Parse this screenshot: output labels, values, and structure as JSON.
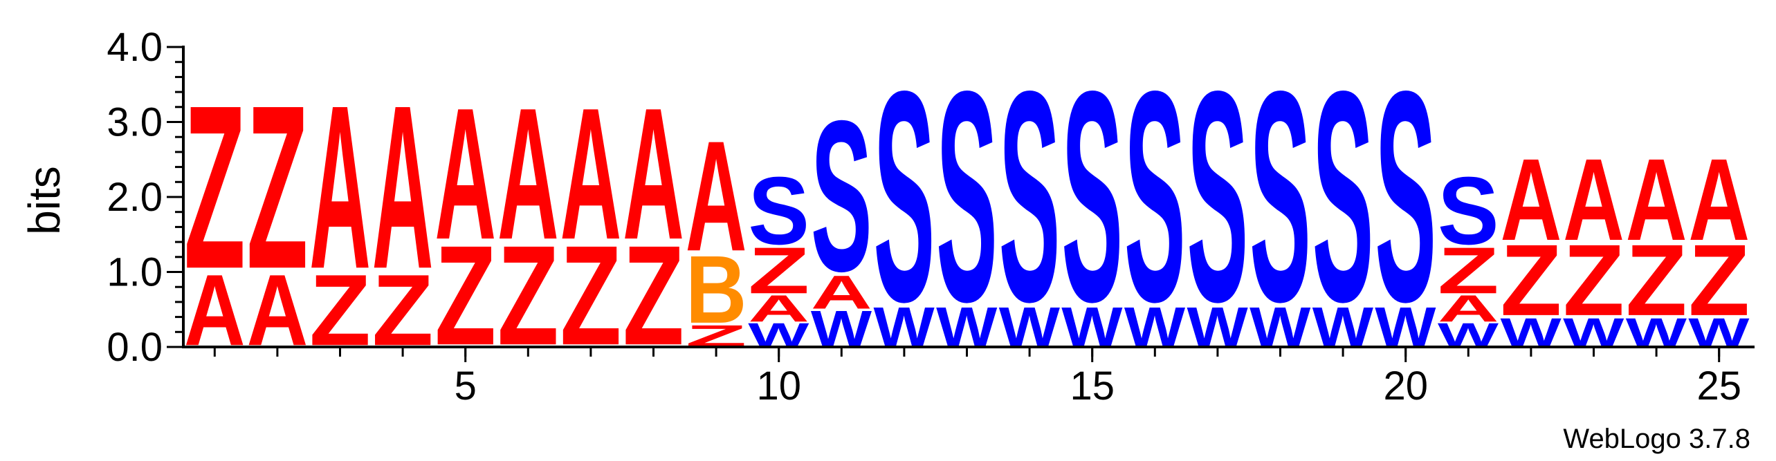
{
  "chart_data": {
    "type": "sequence-logo",
    "ylabel": "bits",
    "ylim": [
      0,
      4.0
    ],
    "yticks": [
      "0.0",
      "1.0",
      "2.0",
      "3.0",
      "4.0"
    ],
    "xlim": [
      0.5,
      25.5
    ],
    "xticks": [
      5,
      10,
      15,
      20,
      25
    ],
    "footer": "WebLogo 3.7.8",
    "colors": {
      "Z": "#ff0000",
      "A": "#ff0000",
      "S": "#0000ff",
      "W": "#0000ff",
      "B": "#ff8c00"
    },
    "positions": [
      {
        "pos": 1,
        "stack": [
          {
            "letter": "A",
            "bits": 1.0
          },
          {
            "letter": "Z",
            "bits": 2.3
          }
        ]
      },
      {
        "pos": 2,
        "stack": [
          {
            "letter": "A",
            "bits": 1.0
          },
          {
            "letter": "Z",
            "bits": 2.3
          }
        ]
      },
      {
        "pos": 3,
        "stack": [
          {
            "letter": "Z",
            "bits": 1.0
          },
          {
            "letter": "A",
            "bits": 2.3
          }
        ]
      },
      {
        "pos": 4,
        "stack": [
          {
            "letter": "Z",
            "bits": 1.0
          },
          {
            "letter": "A",
            "bits": 2.3
          }
        ]
      },
      {
        "pos": 5,
        "stack": [
          {
            "letter": "Z",
            "bits": 1.4
          },
          {
            "letter": "A",
            "bits": 1.85
          }
        ]
      },
      {
        "pos": 6,
        "stack": [
          {
            "letter": "Z",
            "bits": 1.4
          },
          {
            "letter": "A",
            "bits": 1.85
          }
        ]
      },
      {
        "pos": 7,
        "stack": [
          {
            "letter": "Z",
            "bits": 1.4
          },
          {
            "letter": "A",
            "bits": 1.85
          }
        ]
      },
      {
        "pos": 8,
        "stack": [
          {
            "letter": "Z",
            "bits": 1.4
          },
          {
            "letter": "A",
            "bits": 1.85
          }
        ]
      },
      {
        "pos": 9,
        "stack": [
          {
            "letter": "Z",
            "bits": 0.3
          },
          {
            "letter": "B",
            "bits": 0.95
          },
          {
            "letter": "A",
            "bits": 1.55
          }
        ]
      },
      {
        "pos": 10,
        "stack": [
          {
            "letter": "W",
            "bits": 0.33
          },
          {
            "letter": "A",
            "bits": 0.37
          },
          {
            "letter": "Z",
            "bits": 0.65
          },
          {
            "letter": "S",
            "bits": 0.95
          }
        ]
      },
      {
        "pos": 11,
        "stack": [
          {
            "letter": "W",
            "bits": 0.5
          },
          {
            "letter": "A",
            "bits": 0.47
          },
          {
            "letter": "S",
            "bits": 2.12
          }
        ]
      },
      {
        "pos": 12,
        "stack": [
          {
            "letter": "W",
            "bits": 0.55
          },
          {
            "letter": "S",
            "bits": 2.96
          }
        ]
      },
      {
        "pos": 13,
        "stack": [
          {
            "letter": "W",
            "bits": 0.55
          },
          {
            "letter": "S",
            "bits": 2.96
          }
        ]
      },
      {
        "pos": 14,
        "stack": [
          {
            "letter": "W",
            "bits": 0.55
          },
          {
            "letter": "S",
            "bits": 2.96
          }
        ]
      },
      {
        "pos": 15,
        "stack": [
          {
            "letter": "W",
            "bits": 0.55
          },
          {
            "letter": "S",
            "bits": 2.96
          }
        ]
      },
      {
        "pos": 16,
        "stack": [
          {
            "letter": "W",
            "bits": 0.55
          },
          {
            "letter": "S",
            "bits": 2.96
          }
        ]
      },
      {
        "pos": 17,
        "stack": [
          {
            "letter": "W",
            "bits": 0.55
          },
          {
            "letter": "S",
            "bits": 2.96
          }
        ]
      },
      {
        "pos": 18,
        "stack": [
          {
            "letter": "W",
            "bits": 0.55
          },
          {
            "letter": "S",
            "bits": 2.96
          }
        ]
      },
      {
        "pos": 19,
        "stack": [
          {
            "letter": "W",
            "bits": 0.55
          },
          {
            "letter": "S",
            "bits": 2.96
          }
        ]
      },
      {
        "pos": 20,
        "stack": [
          {
            "letter": "W",
            "bits": 0.55
          },
          {
            "letter": "S",
            "bits": 2.96
          }
        ]
      },
      {
        "pos": 21,
        "stack": [
          {
            "letter": "W",
            "bits": 0.33
          },
          {
            "letter": "A",
            "bits": 0.37
          },
          {
            "letter": "Z",
            "bits": 0.65
          },
          {
            "letter": "S",
            "bits": 0.95
          }
        ]
      },
      {
        "pos": 22,
        "stack": [
          {
            "letter": "W",
            "bits": 0.4
          },
          {
            "letter": "Z",
            "bits": 1.0
          },
          {
            "letter": "A",
            "bits": 1.15
          }
        ]
      },
      {
        "pos": 23,
        "stack": [
          {
            "letter": "W",
            "bits": 0.4
          },
          {
            "letter": "Z",
            "bits": 1.0
          },
          {
            "letter": "A",
            "bits": 1.15
          }
        ]
      },
      {
        "pos": 24,
        "stack": [
          {
            "letter": "W",
            "bits": 0.4
          },
          {
            "letter": "Z",
            "bits": 1.0
          },
          {
            "letter": "A",
            "bits": 1.15
          }
        ]
      },
      {
        "pos": 25,
        "stack": [
          {
            "letter": "W",
            "bits": 0.4
          },
          {
            "letter": "Z",
            "bits": 1.0
          },
          {
            "letter": "A",
            "bits": 1.15
          }
        ]
      }
    ]
  }
}
